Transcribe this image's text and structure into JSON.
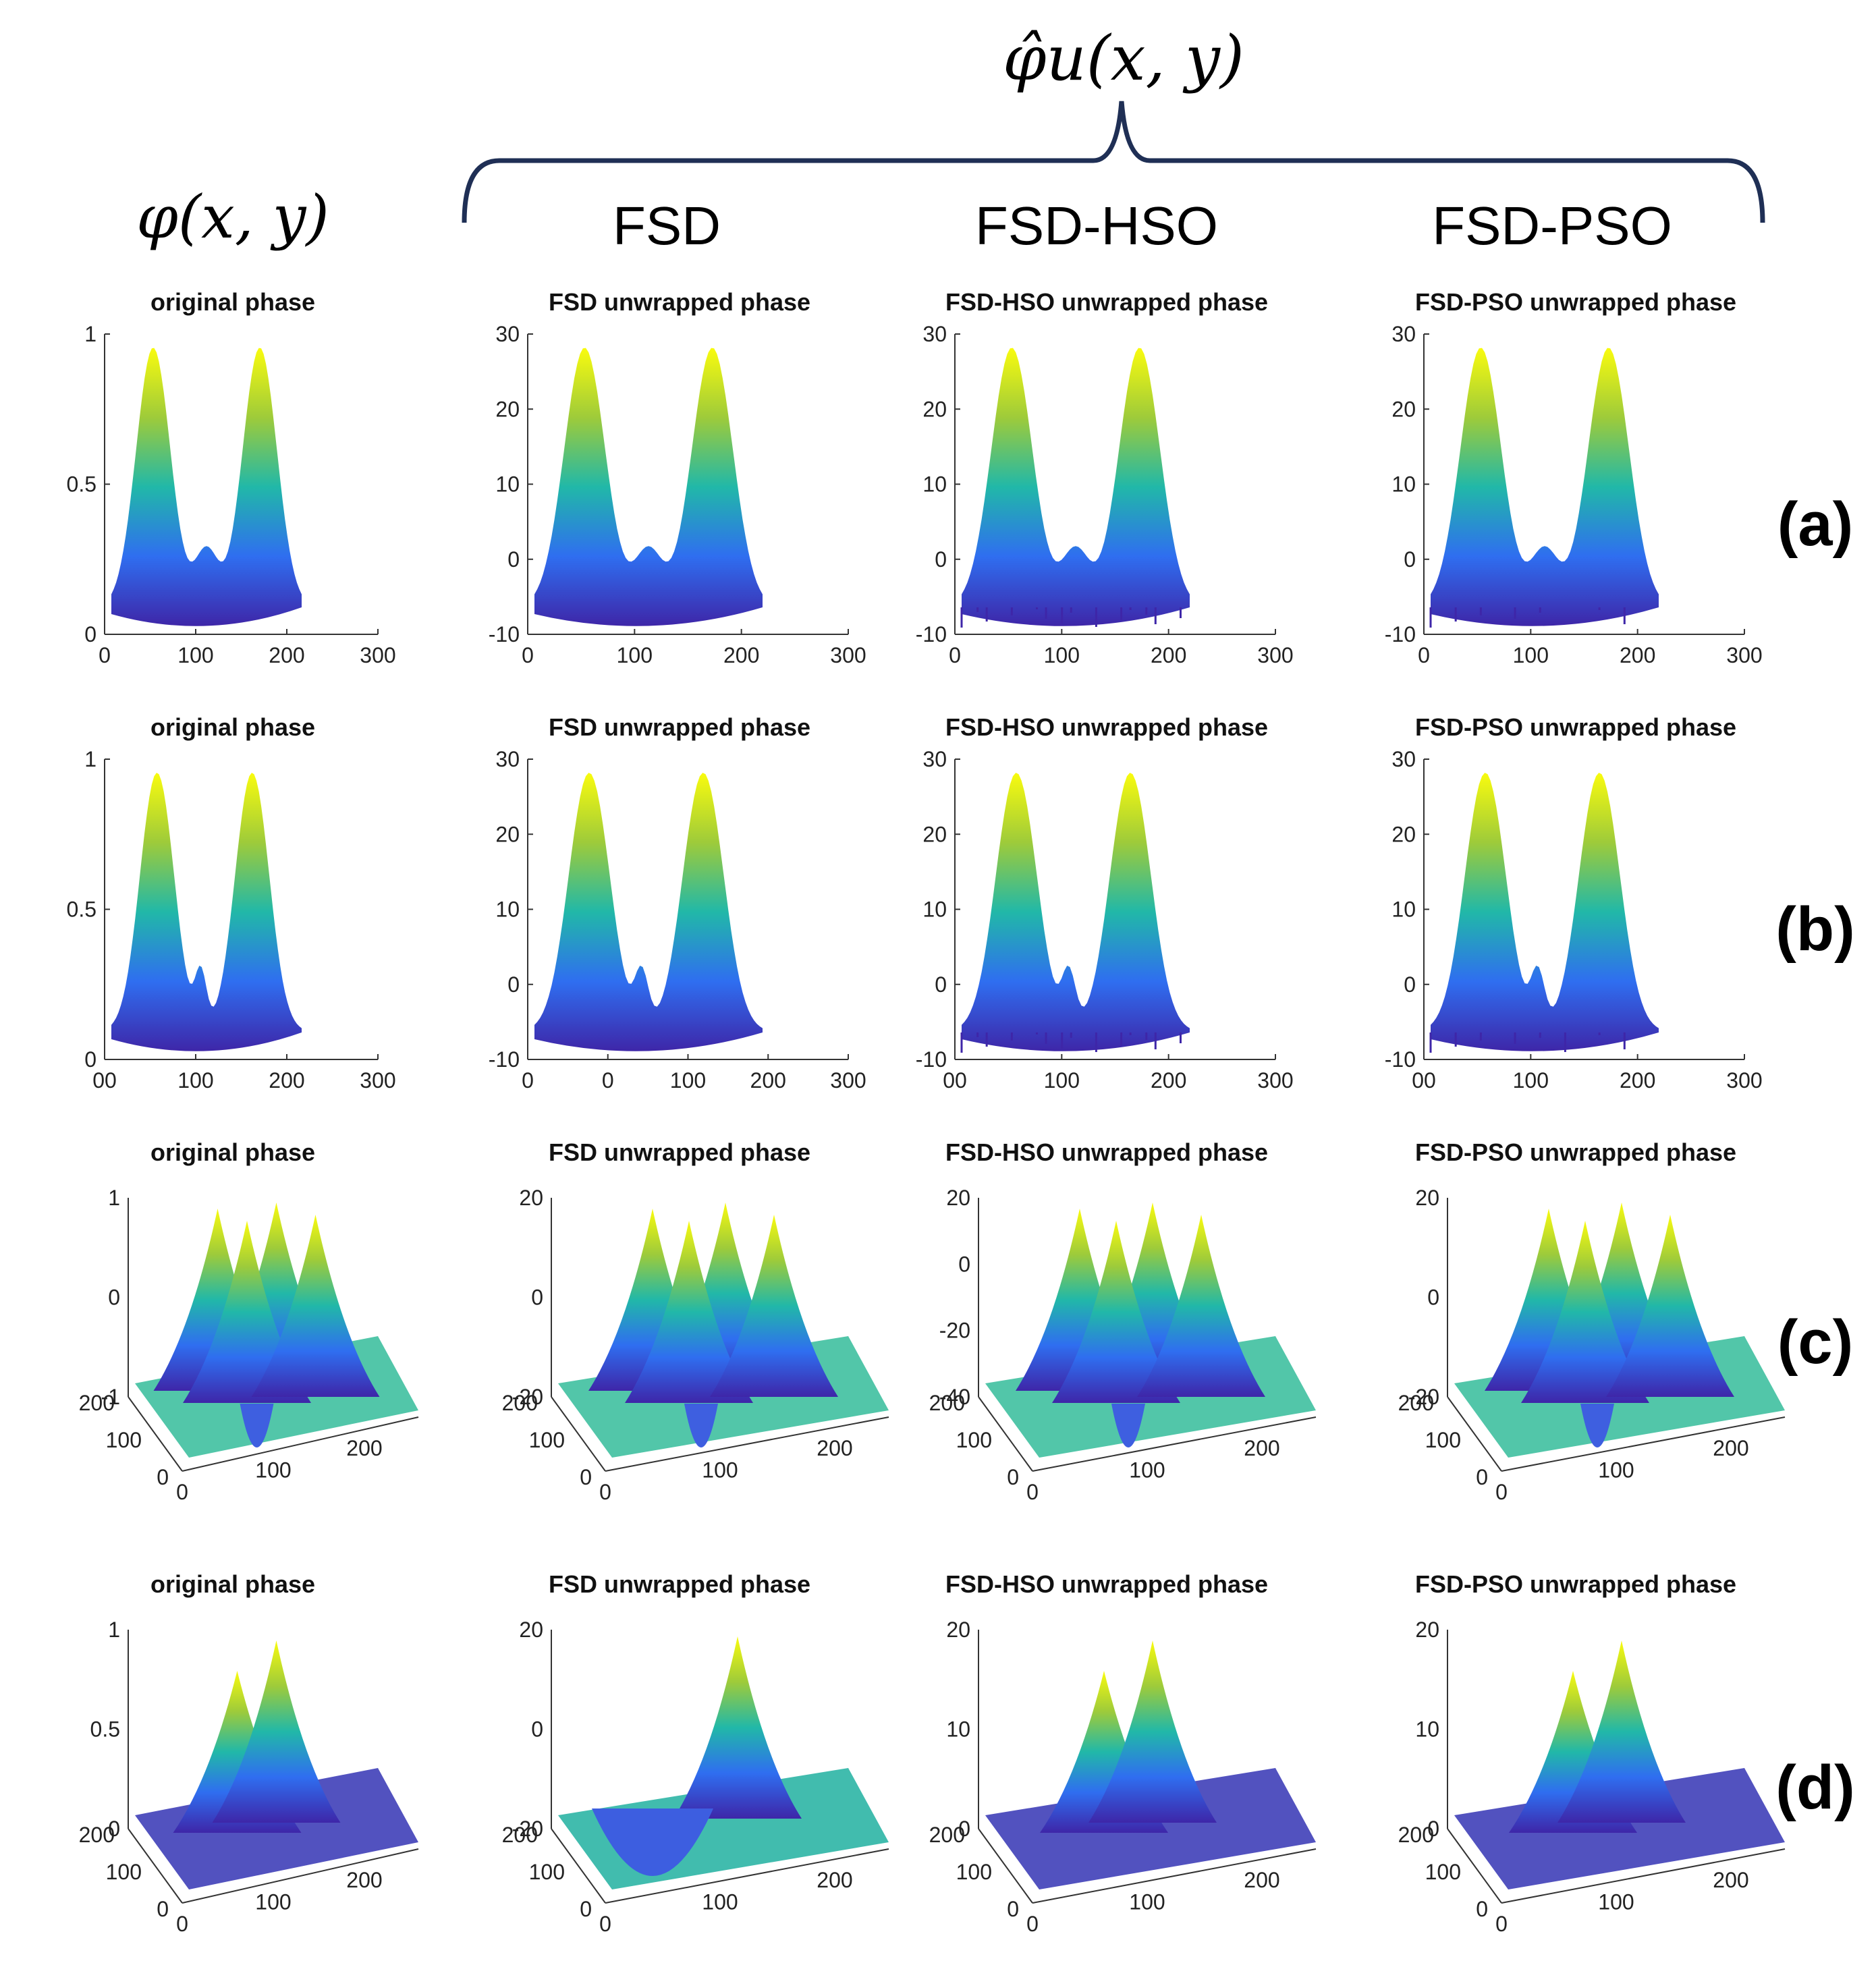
{
  "header": {
    "estimate_symbol": "φ̂u(x, y)",
    "original_symbol": "φ(x, y)",
    "columns": [
      "FSD",
      "FSD-HSO",
      "FSD-PSO"
    ]
  },
  "row_labels": [
    "(a)",
    "(b)",
    "(c)",
    "(d)"
  ],
  "colors": {
    "low": "#3e26a8",
    "mid": "#21b8a8",
    "high": "#f9fb0e",
    "brace": "#1f2f55"
  },
  "chart_data": [
    {
      "type": "surface",
      "row": "(a)",
      "col": 0,
      "title": "original phase",
      "view": "side",
      "shape": "twin-peaks",
      "yticks": [
        "0",
        "0.5",
        "1"
      ],
      "xticks": [
        "0",
        "100",
        "200",
        "300"
      ],
      "zlim": [
        0,
        1
      ]
    },
    {
      "type": "surface",
      "row": "(a)",
      "col": 1,
      "title": "FSD unwrapped phase",
      "view": "side",
      "shape": "twin-peaks",
      "yticks": [
        "-10",
        "0",
        "10",
        "20",
        "30"
      ],
      "xticks": [
        "0",
        "100",
        "200",
        "300"
      ],
      "zlim": [
        -10,
        30
      ],
      "noise": 0
    },
    {
      "type": "surface",
      "row": "(a)",
      "col": 2,
      "title": "FSD-HSO unwrapped phase",
      "view": "side",
      "shape": "twin-peaks",
      "yticks": [
        "-10",
        "0",
        "10",
        "20",
        "30"
      ],
      "xticks": [
        "0",
        "100",
        "200",
        "300"
      ],
      "zlim": [
        -10,
        30
      ],
      "noise": 1
    },
    {
      "type": "surface",
      "row": "(a)",
      "col": 3,
      "title": "FSD-PSO unwrapped phase",
      "view": "side",
      "shape": "twin-peaks",
      "yticks": [
        "-10",
        "0",
        "10",
        "20",
        "30"
      ],
      "xticks": [
        "0",
        "100",
        "200",
        "300"
      ],
      "zlim": [
        -10,
        30
      ],
      "noise": 0.5
    },
    {
      "type": "surface",
      "row": "(b)",
      "col": 0,
      "title": "original phase",
      "view": "side",
      "shape": "double-twin-peaks",
      "yticks": [
        "0",
        "0.5",
        "1"
      ],
      "xticks": [
        "00",
        "100",
        "200",
        "300"
      ],
      "zlim": [
        0,
        1
      ]
    },
    {
      "type": "surface",
      "row": "(b)",
      "col": 1,
      "title": "FSD unwrapped phase",
      "view": "side",
      "shape": "double-twin-peaks",
      "yticks": [
        "-10",
        "0",
        "10",
        "20",
        "30"
      ],
      "xticks": [
        "0",
        "0",
        "100",
        "200",
        "300"
      ],
      "zlim": [
        -10,
        30
      ],
      "noise": 0
    },
    {
      "type": "surface",
      "row": "(b)",
      "col": 2,
      "title": "FSD-HSO unwrapped phase",
      "view": "side",
      "shape": "double-twin-peaks",
      "yticks": [
        "-10",
        "0",
        "10",
        "20",
        "30"
      ],
      "xticks": [
        "00",
        "100",
        "200",
        "300"
      ],
      "zlim": [
        -10,
        30
      ],
      "noise": 1
    },
    {
      "type": "surface",
      "row": "(b)",
      "col": 3,
      "title": "FSD-PSO unwrapped phase",
      "view": "side",
      "shape": "double-twin-peaks",
      "yticks": [
        "-10",
        "0",
        "10",
        "20",
        "30"
      ],
      "xticks": [
        "00",
        "100",
        "200",
        "300"
      ],
      "zlim": [
        -10,
        30
      ],
      "noise": 0.6
    },
    {
      "type": "surface",
      "row": "(c)",
      "col": 0,
      "title": "original phase",
      "view": "iso",
      "shape": "three-peaks-one-pit",
      "zticks": [
        "-1",
        "0",
        "1"
      ],
      "yticks": [
        "0",
        "100",
        "200"
      ],
      "xticks": [
        "0",
        "100",
        "200"
      ],
      "zlim": [
        -1,
        1
      ]
    },
    {
      "type": "surface",
      "row": "(c)",
      "col": 1,
      "title": "FSD unwrapped phase",
      "view": "iso",
      "shape": "three-peaks-one-pit",
      "zticks": [
        "-20",
        "0",
        "20"
      ],
      "yticks": [
        "0",
        "100",
        "200"
      ],
      "xticks": [
        "0",
        "100",
        "200"
      ],
      "zlim": [
        -20,
        20
      ],
      "noise": 0.3
    },
    {
      "type": "surface",
      "row": "(c)",
      "col": 2,
      "title": "FSD-HSO unwrapped phase",
      "view": "iso",
      "shape": "three-peaks-one-pit",
      "zticks": [
        "-40",
        "-20",
        "0",
        "20"
      ],
      "yticks": [
        "0",
        "100",
        "200"
      ],
      "xticks": [
        "0",
        "100",
        "200"
      ],
      "zlim": [
        -40,
        20
      ],
      "noise": 1
    },
    {
      "type": "surface",
      "row": "(c)",
      "col": 3,
      "title": "FSD-PSO unwrapped phase",
      "view": "iso",
      "shape": "three-peaks-one-pit",
      "zticks": [
        "-20",
        "0",
        "20"
      ],
      "yticks": [
        "0",
        "100",
        "200"
      ],
      "xticks": [
        "0",
        "100",
        "200"
      ],
      "zlim": [
        -20,
        20
      ],
      "noise": 0.3
    },
    {
      "type": "surface",
      "row": "(d)",
      "col": 0,
      "title": "original phase",
      "view": "iso",
      "shape": "two-peaks",
      "zticks": [
        "0",
        "0.5",
        "1"
      ],
      "yticks": [
        "0",
        "100",
        "200"
      ],
      "xticks": [
        "0",
        "100",
        "200"
      ],
      "zlim": [
        0,
        1
      ]
    },
    {
      "type": "surface",
      "row": "(d)",
      "col": 1,
      "title": "FSD unwrapped phase",
      "view": "iso",
      "shape": "peak-and-pit",
      "zticks": [
        "-20",
        "0",
        "20"
      ],
      "yticks": [
        "0",
        "100",
        "200"
      ],
      "xticks": [
        "0",
        "100",
        "200"
      ],
      "zlim": [
        -20,
        20
      ],
      "noise": 0
    },
    {
      "type": "surface",
      "row": "(d)",
      "col": 2,
      "title": "FSD-HSO unwrapped phase",
      "view": "iso",
      "shape": "two-peaks",
      "zticks": [
        "0",
        "10",
        "20"
      ],
      "yticks": [
        "0",
        "100",
        "200"
      ],
      "xticks": [
        "0",
        "100",
        "200"
      ],
      "zlim": [
        0,
        20
      ],
      "noise": 1
    },
    {
      "type": "surface",
      "row": "(d)",
      "col": 3,
      "title": "FSD-PSO unwrapped phase",
      "view": "iso",
      "shape": "two-peaks",
      "zticks": [
        "0",
        "10",
        "20"
      ],
      "yticks": [
        "0",
        "100",
        "200"
      ],
      "xticks": [
        "0",
        "100",
        "200"
      ],
      "zlim": [
        0,
        20
      ],
      "noise": 0.3
    }
  ]
}
